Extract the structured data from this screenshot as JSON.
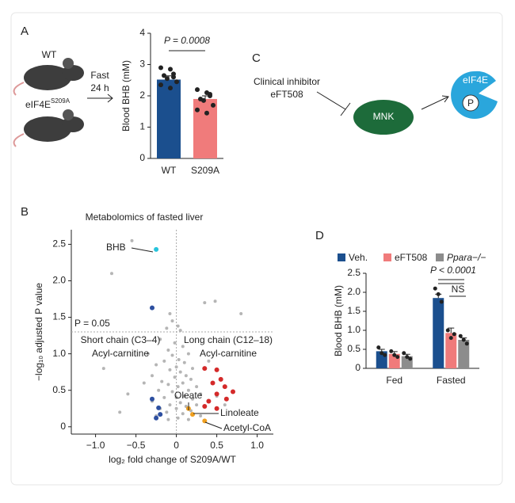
{
  "chart_data": [
    {
      "type": "bar",
      "label": "A",
      "ylabel": "Blood BHB (mM)",
      "categories": [
        "WT",
        "S209A"
      ],
      "values": [
        2.52,
        1.9
      ],
      "errors": [
        0.12,
        0.1
      ],
      "colors": [
        "#1b4f8e",
        "#f07b7b"
      ],
      "points": [
        [
          2.9,
          2.85,
          2.7,
          2.65,
          2.55,
          2.45,
          2.35,
          2.25,
          2.6
        ],
        [
          2.2,
          2.1,
          2.0,
          1.9,
          1.85,
          1.7,
          1.55,
          1.45,
          2.05
        ]
      ],
      "ylim": [
        0,
        4
      ],
      "yticks": [
        0,
        1,
        2,
        3,
        4
      ],
      "annotation": "P = 0.0008"
    },
    {
      "type": "scatter",
      "label": "B",
      "title": "Metabolomics of fasted liver",
      "xlabel": "log₂ fold change of S209A/WT",
      "ylabel": "−log₁₀ adjusted P value",
      "xlim": [
        -1.3,
        1.2
      ],
      "ylim": [
        -0.1,
        2.7
      ],
      "xticks": [
        {
          "value": -1,
          "label": "−1.0"
        },
        {
          "value": -0.5,
          "label": "−0.5"
        },
        0,
        0.5,
        {
          "value": 1,
          "label": "1.0"
        }
      ],
      "yticks": [
        0,
        0.5,
        {
          "value": 1,
          "label": "1.0"
        },
        1.5,
        {
          "value": 2,
          "label": "2.0"
        },
        2.5
      ],
      "threshold": {
        "value": 1.3,
        "label": "P = 0.05"
      },
      "series": [
        {
          "color": "#b5b5b5",
          "x": [
            -0.8,
            -0.55,
            0.35,
            0.48,
            0.8,
            -0.08,
            -0.05,
            0.02,
            -0.12,
            0.05,
            -0.2,
            -0.02,
            0.08,
            -0.1,
            0.15,
            -0.05,
            0.03,
            -0.15,
            0.1,
            -0.25,
            0,
            0.2,
            -0.08,
            0.05,
            -0.3,
            0.12,
            -0.02,
            0.18,
            -0.18,
            0.08,
            -0.1,
            0.25,
            0.02,
            -0.22,
            0.15,
            -0.05,
            0.3,
            0.1,
            -0.15,
            0,
            0.2,
            -0.3,
            0.05,
            -0.08,
            0.25,
            0.12,
            -0.2,
            0,
            0.18,
            -0.12,
            0.08,
            -0.25,
            0.3,
            0.02,
            -0.1,
            0.15,
            -0.4,
            -0.6,
            0.5,
            0.4,
            -0.35,
            -0.9,
            0.6,
            -0.7
          ],
          "values": [
            2.1,
            2.55,
            1.7,
            1.72,
            1.55,
            1.55,
            1.45,
            1.38,
            1.35,
            1.32,
            1.2,
            1.15,
            1.1,
            1.05,
            1.0,
            0.98,
            0.92,
            0.9,
            0.88,
            0.85,
            0.82,
            0.8,
            0.78,
            0.75,
            0.7,
            0.7,
            0.68,
            0.65,
            0.62,
            0.6,
            0.58,
            0.55,
            0.55,
            0.5,
            0.5,
            0.48,
            0.45,
            0.42,
            0.4,
            0.4,
            0.38,
            0.35,
            0.33,
            0.3,
            0.3,
            0.28,
            0.25,
            0.25,
            0.22,
            0.2,
            0.18,
            0.15,
            0.15,
            0.12,
            0.1,
            0.1,
            0.6,
            0.45,
            0.42,
            0.9,
            1.0,
            0.8,
            0.3,
            0.2
          ]
        },
        {
          "color": "#2d4fa0",
          "x": [
            -0.3,
            -0.3,
            -0.22,
            -0.2,
            -0.25
          ],
          "values": [
            1.63,
            0.38,
            0.26,
            0.17,
            0.12
          ]
        },
        {
          "color": "#d42a2a",
          "x": [
            0.35,
            0.5,
            0.55,
            0.45,
            0.6,
            0.7,
            0.5,
            0.62,
            0.4,
            0.35,
            0.5
          ],
          "values": [
            0.8,
            0.78,
            0.65,
            0.6,
            0.55,
            0.48,
            0.45,
            0.38,
            0.35,
            0.28,
            0.25
          ]
        },
        {
          "color": "#f0a020",
          "x": [
            0.15,
            0.2,
            0.35
          ],
          "values": [
            0.25,
            0.17,
            0.08
          ]
        },
        {
          "color": "#27c4dc",
          "x": [
            -0.25
          ],
          "values": [
            2.43
          ]
        }
      ],
      "annotations": {
        "bhb": "BHB",
        "short_chain": [
          "Short chain (C3–4)",
          "Acyl-carnitine"
        ],
        "long_chain": [
          "Long chain (C12–18)",
          "Acyl-carnitine"
        ],
        "oleate": "Oleate",
        "linoleate": "Linoleate",
        "acetyl_coa": "Acetyl-CoA"
      }
    },
    {
      "type": "grouped_bar",
      "label": "D",
      "ylabel": "Blood BHB (mM)",
      "categories": [
        "Fed",
        "Fasted"
      ],
      "ylim": [
        0,
        2.5
      ],
      "yticks": [
        0,
        0.5,
        {
          "value": 1,
          "label": "1.0"
        },
        1.5,
        {
          "value": 2,
          "label": "2.0"
        },
        2.5
      ],
      "series": [
        {
          "name": "Veh.",
          "color": "#1b4f8e",
          "values": [
            0.45,
            1.85
          ],
          "errors": [
            0.05,
            0.1
          ],
          "points": [
            [
              0.55,
              0.4,
              0.35
            ],
            [
              2.1,
              1.95,
              1.75
            ]
          ]
        },
        {
          "name": "eFT508",
          "color": "#f07b7b",
          "values": [
            0.38,
            0.93
          ],
          "errors": [
            0.06,
            0.13
          ],
          "points": [
            [
              0.45,
              0.35,
              0.3
            ],
            [
              1.0,
              0.8,
              0.9
            ]
          ]
        },
        {
          "name": "Ppara−/−",
          "color": "#8c8c8c",
          "values": [
            0.32,
            0.75
          ],
          "errors": [
            0.05,
            0.05
          ],
          "points": [
            [
              0.4,
              0.3,
              0.25
            ],
            [
              0.85,
              0.75,
              0.65
            ]
          ]
        }
      ],
      "annotations": {
        "sig": "P < 0.0001",
        "ns": "NS"
      }
    }
  ],
  "panel_a": {
    "mouse_1": "WT",
    "mouse_2": {
      "text": "eIF4E",
      "superscript": "S209A"
    },
    "arrow": [
      "Fast",
      "24 h"
    ]
  },
  "panel_c": {
    "label": "C",
    "inhibitor": [
      "Clinical inhibitor",
      "eFT508"
    ],
    "kinase": "MNK",
    "target": "eIF4E",
    "phospho": "P"
  }
}
